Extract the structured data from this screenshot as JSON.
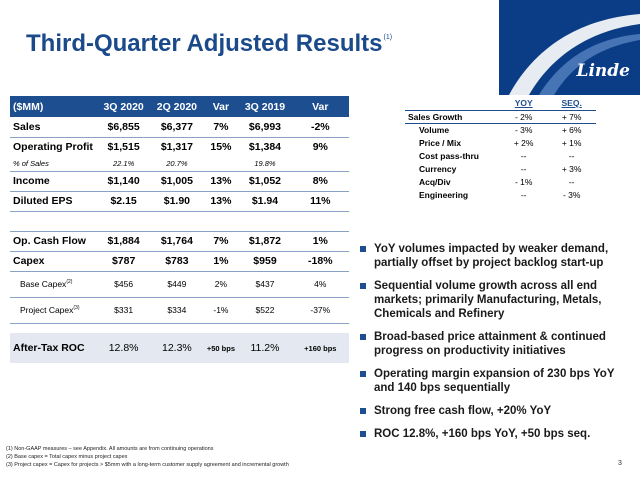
{
  "title": "Third-Quarter Adjusted Results",
  "title_sup": "(1)",
  "logo_text": "Linde",
  "main_table": {
    "headers": [
      "($MM)",
      "3Q 2020",
      "2Q 2020",
      "Var",
      "3Q 2019",
      "Var"
    ],
    "rows": [
      [
        "Sales",
        "$6,855",
        "$6,377",
        "7%",
        "$6,993",
        "-2%"
      ],
      [
        "Operating Profit",
        "$1,515",
        "$1,317",
        "15%",
        "$1,384",
        "9%"
      ],
      [
        "% of Sales",
        "22.1%",
        "20.7%",
        "",
        "19.8%",
        ""
      ],
      [
        "Income",
        "$1,140",
        "$1,005",
        "13%",
        "$1,052",
        "8%"
      ],
      [
        "Diluted EPS",
        "$2.15",
        "$1.90",
        "13%",
        "$1.94",
        "11%"
      ],
      [
        "Op. Cash Flow",
        "$1,884",
        "$1,764",
        "7%",
        "$1,872",
        "1%"
      ],
      [
        "Capex",
        "$787",
        "$783",
        "1%",
        "$959",
        "-18%"
      ],
      [
        "Base Capex",
        "$456",
        "$449",
        "2%",
        "$437",
        "4%"
      ],
      [
        "Project Capex",
        "$331",
        "$334",
        "-1%",
        "$522",
        "-37%"
      ],
      [
        "After-Tax ROC",
        "12.8%",
        "12.3%",
        "+50 bps",
        "11.2%",
        "+160 bps"
      ]
    ],
    "base_capex_sup": "(2)",
    "project_capex_sup": "(3)"
  },
  "sales_growth": {
    "headers": [
      "",
      "YOY",
      "SEQ."
    ],
    "rows": [
      [
        "Sales Growth",
        "- 2%",
        "+ 7%"
      ],
      [
        "Volume",
        "- 3%",
        "+ 6%"
      ],
      [
        "Price / Mix",
        "+ 2%",
        "+ 1%"
      ],
      [
        "Cost pass-thru",
        "--",
        "--"
      ],
      [
        "Currency",
        "--",
        "+ 3%"
      ],
      [
        "Acq/Div",
        "- 1%",
        "--"
      ],
      [
        "Engineering",
        "--",
        "- 3%"
      ]
    ]
  },
  "bullets": [
    "YoY volumes impacted by weaker demand, partially offset by project backlog start-up",
    "Sequential volume growth across all end markets; primarily Manufacturing, Metals, Chemicals and Refinery",
    "Broad-based price attainment & continued progress on productivity initiatives",
    "Operating margin expansion of 230 bps YoY and 140 bps sequentially",
    "Strong free cash flow, +20% YoY",
    "ROC 12.8%, +160 bps YoY, +50 bps seq."
  ],
  "footnotes": [
    "(1) Non-GAAP measures – see Appendix. All amounts are from continuing operations",
    "(2) Base capex = Total capex minus project capex",
    "(3) Project capex = Capex for projects > $5mm with a long-term customer supply agreement and incremental growth"
  ],
  "page_number": "3",
  "colors": {
    "brand_blue": "#1d4e8f",
    "title_blue": "#1a4a8a",
    "logo_bg": "#0b3d86",
    "highlight_row": "#e4e8f0"
  }
}
